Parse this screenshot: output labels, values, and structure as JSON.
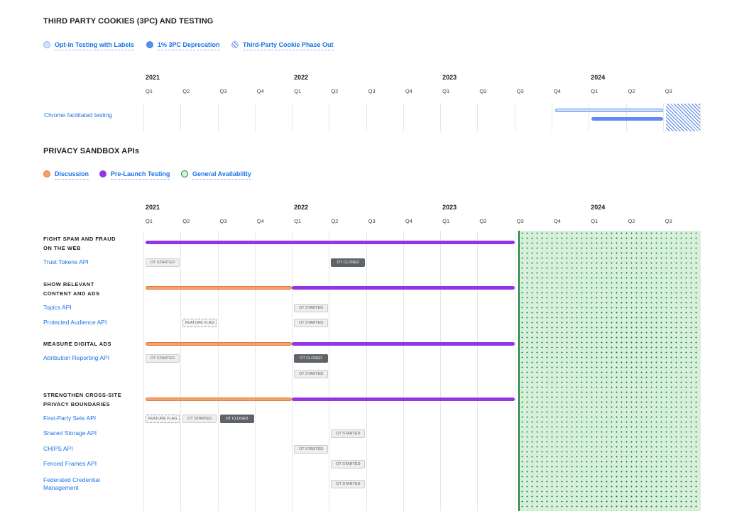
{
  "colors": {
    "optin": "#d2e3fc",
    "deprecation": "#5b8def",
    "phaseout": "#4a7fe0",
    "discussion": "#f6a06b",
    "prelaunch": "#9334e6",
    "ga": "#d7f0dc",
    "ga_line": "#188038",
    "link": "#1a73e8"
  },
  "quarters": [
    "Q1",
    "Q2",
    "Q3",
    "Q4",
    "Q1",
    "Q2",
    "Q3",
    "Q4",
    "Q1",
    "Q2",
    "Q3",
    "Q4",
    "Q1",
    "Q2",
    "Q3"
  ],
  "years": [
    {
      "label": "2021",
      "quarter_index": 0
    },
    {
      "label": "2022",
      "quarter_index": 4
    },
    {
      "label": "2023",
      "quarter_index": 8
    },
    {
      "label": "2024",
      "quarter_index": 12
    }
  ],
  "chart_data": [
    {
      "type": "gantt",
      "title": "THIRD PARTY COOKIES (3PC) AND TESTING",
      "legend": [
        {
          "label": "Opt-in Testing with Labels",
          "icon": "light-circle"
        },
        {
          "label": "1% 3PC Deprecation",
          "icon": "filled-circle"
        },
        {
          "label": "Third-Party Cookie Phase Out",
          "icon": "hatched-circle"
        }
      ],
      "rows": [
        {
          "label": "Chrome facilitated testing"
        }
      ],
      "series": [
        {
          "name": "Opt-in Testing with Labels",
          "start": "2023 Q4",
          "end": "2024 Q3"
        },
        {
          "name": "1% 3PC Deprecation",
          "start": "2024 Q1",
          "end": "2024 Q3"
        },
        {
          "name": "Third-Party Cookie Phase Out",
          "start": "2024 Q3",
          "end": "onward"
        }
      ]
    },
    {
      "type": "gantt",
      "title": "PRIVACY SANDBOX APIs",
      "legend": [
        {
          "label": "Discussion",
          "icon": "orange-circle"
        },
        {
          "label": "Pre-Launch Testing",
          "icon": "purple-circle"
        },
        {
          "label": "General Availability",
          "icon": "green-dotted-circle"
        }
      ],
      "general_availability": {
        "start": "2023 Q3",
        "end": "onward"
      },
      "groups": [
        {
          "title_lines": [
            "FIGHT SPAM AND FRAUD",
            "ON THE WEB"
          ],
          "discussion": null,
          "prelaunch": {
            "start": "2021 Q1",
            "end": "2023 Q3"
          },
          "apis": [
            {
              "label": "Trust Tokens API",
              "milestones": [
                [
                  {
                    "text": "OT STARTED",
                    "kind": "started",
                    "at": "2021 Q1"
                  },
                  {
                    "text": "OT CLOSED",
                    "kind": "closed",
                    "at": "2022 Q2"
                  }
                ]
              ]
            }
          ]
        },
        {
          "title_lines": [
            "SHOW RELEVANT",
            "CONTENT AND ADS"
          ],
          "discussion": {
            "start": "2021 Q1",
            "end": "2022 Q1"
          },
          "prelaunch": {
            "start": "2022 Q1",
            "end": "2023 Q3"
          },
          "apis": [
            {
              "label": "Topics API",
              "milestones": [
                [
                  {
                    "text": "OT STARTED",
                    "kind": "started",
                    "at": "2022 Q1"
                  }
                ]
              ]
            },
            {
              "label": "Protected Audience API",
              "milestones": [
                [
                  {
                    "text": "FEATURE FLAG",
                    "kind": "flag",
                    "at": "2021 Q2"
                  },
                  {
                    "text": "OT STARTED",
                    "kind": "started",
                    "at": "2022 Q1"
                  }
                ]
              ]
            }
          ]
        },
        {
          "title_lines": [
            "MEASURE DIGITAL ADS"
          ],
          "discussion": {
            "start": "2021 Q1",
            "end": "2022 Q1"
          },
          "prelaunch": {
            "start": "2022 Q1",
            "end": "2023 Q3"
          },
          "apis": [
            {
              "label": "Attribution Reporting API",
              "milestones": [
                [
                  {
                    "text": "OT STARTED",
                    "kind": "started",
                    "at": "2021 Q1"
                  },
                  {
                    "text": "OT CLOSED",
                    "kind": "closed",
                    "at": "2022 Q1"
                  }
                ],
                [
                  {
                    "text": "OT STARTED",
                    "kind": "started",
                    "at": "2022 Q1"
                  }
                ]
              ]
            }
          ]
        },
        {
          "title_lines": [
            "STRENGTHEN CROSS-SITE",
            "PRIVACY BOUNDARIES"
          ],
          "discussion": {
            "start": "2021 Q1",
            "end": "2022 Q1"
          },
          "prelaunch": {
            "start": "2022 Q1",
            "end": "2023 Q3"
          },
          "apis": [
            {
              "label": "First-Party Sets API",
              "milestones": [
                [
                  {
                    "text": "FEATURE FLAG",
                    "kind": "flag",
                    "at": "2021 Q1"
                  },
                  {
                    "text": "OT STARTED",
                    "kind": "started",
                    "at": "2021 Q2"
                  },
                  {
                    "text": "OT CLOSED",
                    "kind": "closed",
                    "at": "2021 Q3"
                  }
                ]
              ]
            },
            {
              "label": "Shared Storage API",
              "milestones": [
                [
                  {
                    "text": "OT STARTED",
                    "kind": "started",
                    "at": "2022 Q2"
                  }
                ]
              ]
            },
            {
              "label": "CHIPS API",
              "milestones": [
                [
                  {
                    "text": "OT STARTED",
                    "kind": "started",
                    "at": "2022 Q1"
                  }
                ]
              ]
            },
            {
              "label": "Fenced Frames API",
              "milestones": [
                [
                  {
                    "text": "OT STARTED",
                    "kind": "started",
                    "at": "2022 Q2"
                  }
                ]
              ]
            },
            {
              "label": "Federated Credential Management",
              "milestones": [
                [
                  {
                    "text": "OT STARTED",
                    "kind": "started",
                    "at": "2022 Q2"
                  }
                ]
              ]
            }
          ]
        }
      ]
    }
  ]
}
